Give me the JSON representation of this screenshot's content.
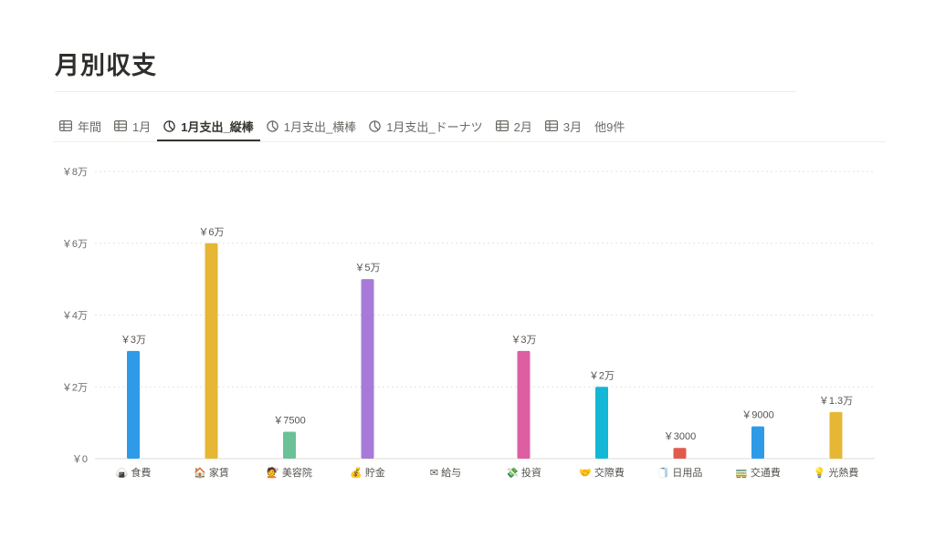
{
  "page": {
    "title": "月別収支"
  },
  "tabs": [
    {
      "label": "年間",
      "icon": "table-icon",
      "active": false
    },
    {
      "label": "1月",
      "icon": "table-icon",
      "active": false
    },
    {
      "label": "1月支出_縦棒",
      "icon": "chart-icon",
      "active": true
    },
    {
      "label": "1月支出_横棒",
      "icon": "chart-icon",
      "active": false
    },
    {
      "label": "1月支出_ドーナツ",
      "icon": "chart-icon",
      "active": false
    },
    {
      "label": "2月",
      "icon": "table-icon",
      "active": false
    },
    {
      "label": "3月",
      "icon": "table-icon",
      "active": false
    },
    {
      "label": "他9件",
      "icon": "",
      "active": false
    }
  ],
  "chart_data": {
    "type": "bar",
    "categories": [
      "食費",
      "家賃",
      "美容院",
      "貯金",
      "給与",
      "投資",
      "交際費",
      "日用品",
      "交通費",
      "光熱費"
    ],
    "category_icons": [
      "🍙",
      "🏠",
      "💇",
      "💰",
      "✉",
      "💸",
      "🤝",
      "🧻",
      "🚃",
      "💡"
    ],
    "values": [
      30000,
      60000,
      7500,
      50000,
      0,
      30000,
      20000,
      3000,
      9000,
      13000
    ],
    "data_labels": [
      "￥3万",
      "￥6万",
      "￥7500",
      "￥5万",
      "",
      "￥3万",
      "￥2万",
      "￥3000",
      "￥9000",
      "￥1.3万"
    ],
    "colors": [
      "#2f9be8",
      "#e6b635",
      "#6cc197",
      "#a77ad8",
      "#cccccc",
      "#dd5fa2",
      "#13b8d6",
      "#e05b4d",
      "#2f9be8",
      "#e6b635"
    ],
    "ylim": [
      0,
      80000
    ],
    "yticks": [
      {
        "value": 0,
        "label": "￥0"
      },
      {
        "value": 20000,
        "label": "￥2万"
      },
      {
        "value": 40000,
        "label": "￥4万"
      },
      {
        "value": 60000,
        "label": "￥6万"
      },
      {
        "value": 80000,
        "label": "￥8万"
      }
    ],
    "grid": true,
    "legend": "none"
  }
}
